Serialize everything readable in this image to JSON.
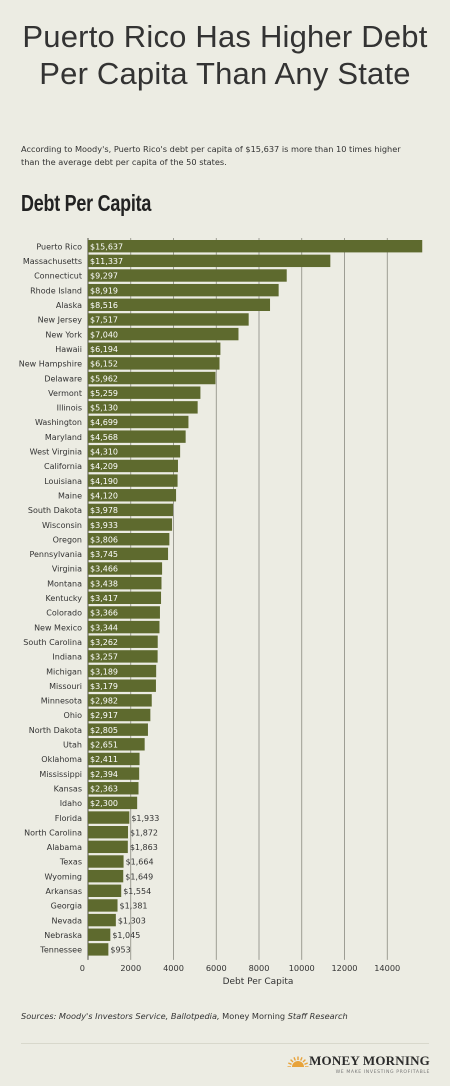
{
  "headline": "Puerto Rico Has Higher Debt Per Capita Than Any State",
  "intro": "According to Moody's, Puerto Rico's debt per capita of $15,637 is more than 10 times higher than the average debt per capita of the 50 states.",
  "section_title": "Debt Per Capita",
  "sources_italic": "Sources: Moody's Investors Service, Ballotpedia,",
  "sources_plain": " Money Morning ",
  "sources_italic2": "Staff Research",
  "brand": {
    "name": "MONEY MORNING",
    "tagline": "WE MAKE INVESTING PROFITABLE",
    "logo_color": "#e8a33a"
  },
  "colors": {
    "bar": "#5e6a2e",
    "bar_label": "#ffffff",
    "grid": "#8a8a80",
    "background": "#ecece3"
  },
  "chart_data": {
    "type": "bar",
    "orientation": "horizontal",
    "title": "Debt Per Capita",
    "xlabel": "Debt Per Capita",
    "ylabel": "",
    "xlim": [
      0,
      16000
    ],
    "xticks": [
      0,
      2000,
      4000,
      6000,
      8000,
      10000,
      12000,
      14000
    ],
    "xtick_labels": [
      "0",
      "2000",
      "4000",
      "6000",
      "8000",
      "10000",
      "12000",
      "14000"
    ],
    "grid": true,
    "categories": [
      "Puerto Rico",
      "Massachusetts",
      "Connecticut",
      "Rhode Island",
      "Alaska",
      "New Jersey",
      "New York",
      "Hawaii",
      "New Hampshire",
      "Delaware",
      "Vermont",
      "Illinois",
      "Washington",
      "Maryland",
      "West Virginia",
      "California",
      "Louisiana",
      "Maine",
      "South Dakota",
      "Wisconsin",
      "Oregon",
      "Pennsylvania",
      "Virginia",
      "Montana",
      "Kentucky",
      "Colorado",
      "New Mexico",
      "South Carolina",
      "Indiana",
      "Michigan",
      "Missouri",
      "Minnesota",
      "Ohio",
      "North Dakota",
      "Utah",
      "Oklahoma",
      "Mississippi",
      "Kansas",
      "Idaho",
      "Florida",
      "North Carolina",
      "Alabama",
      "Texas",
      "Wyoming",
      "Arkansas",
      "Georgia",
      "Nevada",
      "Nebraska",
      "Tennessee"
    ],
    "values": [
      15637,
      11337,
      9297,
      8919,
      8516,
      7517,
      7040,
      6194,
      6152,
      5962,
      5259,
      5130,
      4699,
      4568,
      4310,
      4209,
      4190,
      4120,
      3978,
      3933,
      3806,
      3745,
      3466,
      3438,
      3417,
      3366,
      3344,
      3262,
      3257,
      3189,
      3179,
      2982,
      2917,
      2805,
      2651,
      2411,
      2394,
      2363,
      2300,
      1933,
      1872,
      1863,
      1664,
      1649,
      1554,
      1381,
      1303,
      1045,
      953
    ],
    "value_labels": [
      "$15,637",
      "$11,337",
      "$9,297",
      "$8,919",
      "$8,516",
      "$7,517",
      "$7,040",
      "$6,194",
      "$6,152",
      "$5,962",
      "$5,259",
      "$5,130",
      "$4,699",
      "$4,568",
      "$4,310",
      "$4,209",
      "$4,190",
      "$4,120",
      "$3,978",
      "$3,933",
      "$3,806",
      "$3,745",
      "$3,466",
      "$3,438",
      "$3,417",
      "$3,366",
      "$3,344",
      "$3,262",
      "$3,257",
      "$3,189",
      "$3,179",
      "$2,982",
      "$2,917",
      "$2,805",
      "$2,651",
      "$2,411",
      "$2,394",
      "$2,363",
      "$2,300",
      "$1,933",
      "$1,872",
      "$1,863",
      "$1,664",
      "$1,649",
      "$1,554",
      "$1,381",
      "$1,303",
      "$1,045",
      "$953"
    ]
  }
}
